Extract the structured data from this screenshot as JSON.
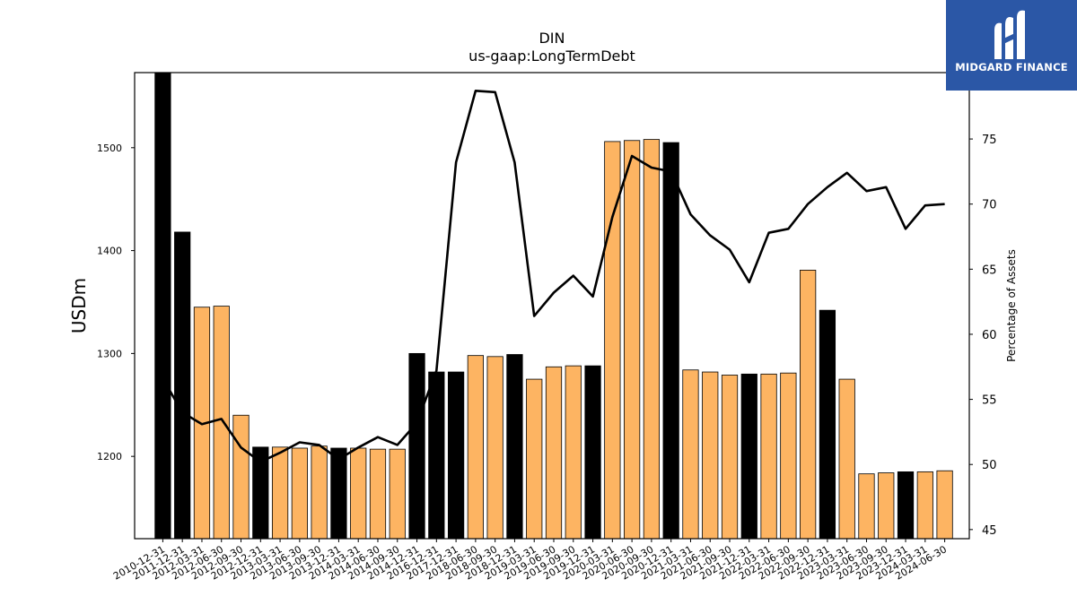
{
  "brand": {
    "name": "MIDGARD FINANCE",
    "bg_color": "#2b57a6"
  },
  "chart_data": {
    "type": "bar",
    "title": "DIN",
    "subtitle": "us-gaap:LongTermDebt",
    "ylabel": "USDm",
    "y2label": "Percentage of Assets",
    "ylim": [
      1120,
      1573
    ],
    "y2lim": [
      44.3,
      80.1
    ],
    "yticks": [
      1200,
      1300,
      1400,
      1500
    ],
    "y2ticks": [
      45,
      50,
      55,
      60,
      65,
      70,
      75
    ],
    "colors": {
      "annual": "#000000",
      "quarterly": "#fdb462",
      "line": "#000000"
    },
    "categories": [
      "2010-12-31",
      "2011-12-31",
      "2012-03-31",
      "2012-06-30",
      "2012-09-30",
      "2012-12-31",
      "2013-03-31",
      "2013-06-30",
      "2013-09-30",
      "2013-12-31",
      "2014-03-31",
      "2014-06-30",
      "2014-09-30",
      "2014-12-31",
      "2016-12-31",
      "2017-12-31",
      "2018-06-30",
      "2018-09-30",
      "2018-12-31",
      "2019-03-31",
      "2019-06-30",
      "2019-09-30",
      "2019-12-31",
      "2020-03-31",
      "2020-06-30",
      "2020-09-30",
      "2020-12-31",
      "2021-03-31",
      "2021-06-30",
      "2021-09-30",
      "2021-12-31",
      "2022-03-31",
      "2022-06-30",
      "2022-09-30",
      "2022-12-31",
      "2023-03-31",
      "2023-06-30",
      "2023-09-30",
      "2023-12-31",
      "2024-03-31",
      "2024-06-30"
    ],
    "series": [
      {
        "kind": "bar",
        "values": [
          1573,
          1418,
          1345,
          1346,
          1240,
          1209,
          1209,
          1208,
          1210,
          1208,
          1208,
          1207,
          1207,
          1300,
          1282,
          1282,
          1298,
          1297,
          1299,
          1275,
          1287,
          1288,
          1288,
          1506,
          1507,
          1508,
          1505,
          1284,
          1282,
          1279,
          1280,
          1280,
          1281,
          1381,
          1342,
          1275,
          1183,
          1184,
          1185,
          1185,
          1186
        ],
        "annual": [
          true,
          true,
          false,
          false,
          false,
          true,
          false,
          false,
          false,
          true,
          false,
          false,
          false,
          true,
          true,
          true,
          false,
          false,
          true,
          false,
          false,
          false,
          true,
          false,
          false,
          false,
          true,
          false,
          false,
          false,
          true,
          false,
          false,
          false,
          true,
          false,
          false,
          false,
          true,
          false,
          false
        ]
      },
      {
        "kind": "line",
        "values": [
          56.6,
          54.0,
          53.1,
          53.5,
          51.3,
          50.2,
          50.9,
          51.7,
          51.5,
          50.4,
          51.3,
          52.1,
          51.5,
          53.2,
          57.2,
          73.2,
          78.7,
          78.6,
          73.2,
          61.4,
          63.2,
          64.5,
          62.9,
          69.0,
          73.7,
          72.8,
          72.5,
          69.2,
          67.6,
          66.5,
          64.0,
          67.8,
          68.1,
          70.0,
          71.3,
          72.4,
          71.0,
          71.3,
          68.1,
          69.9,
          70.0
        ]
      }
    ]
  }
}
